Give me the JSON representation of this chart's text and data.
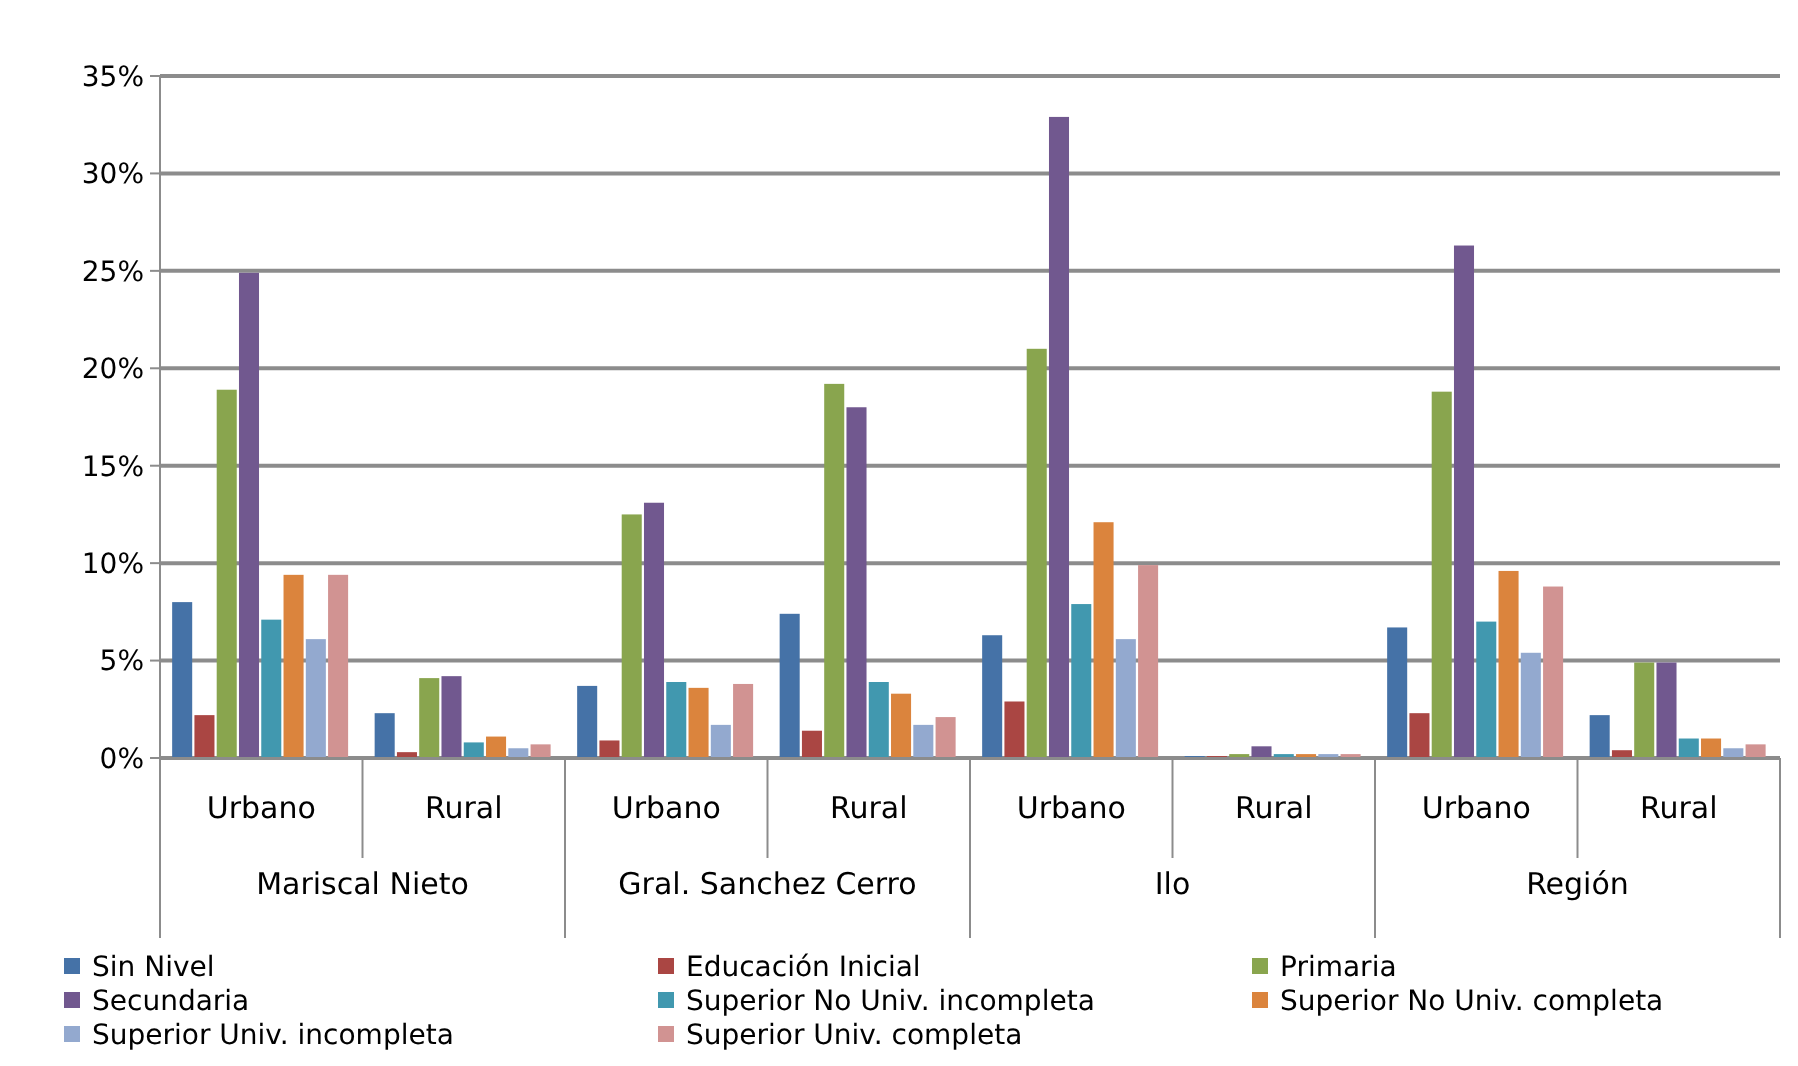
{
  "chart_data": {
    "type": "bar",
    "categories": [
      "Urbano",
      "Rural",
      "Urbano",
      "Rural",
      "Urbano",
      "Rural",
      "Urbano",
      "Rural"
    ],
    "annotations": [
      "Mariscal Nieto",
      "Gral. Sanchez Cerro",
      "Ilo",
      "Región"
    ],
    "series": [
      {
        "name": "Sin Nivel",
        "color": "#4572a7",
        "values": [
          8.0,
          2.3,
          3.7,
          7.4,
          6.3,
          0.1,
          6.7,
          2.2
        ]
      },
      {
        "name": "Educación Inicial",
        "color": "#aa4643",
        "values": [
          2.2,
          0.3,
          0.9,
          1.4,
          2.9,
          0.1,
          2.3,
          0.4
        ]
      },
      {
        "name": "Primaria",
        "color": "#89a54e",
        "values": [
          18.9,
          4.1,
          12.5,
          19.2,
          21.0,
          0.2,
          18.8,
          4.9
        ]
      },
      {
        "name": "Secundaria",
        "color": "#71588f",
        "values": [
          24.9,
          4.2,
          13.1,
          18.0,
          32.9,
          0.6,
          26.3,
          4.9
        ]
      },
      {
        "name": "Superior No Univ. incompleta",
        "color": "#4198af",
        "values": [
          7.1,
          0.8,
          3.9,
          3.9,
          7.9,
          0.2,
          7.0,
          1.0
        ]
      },
      {
        "name": "Superior No Univ. completa",
        "color": "#db843d",
        "values": [
          9.4,
          1.1,
          3.6,
          3.3,
          12.1,
          0.2,
          9.6,
          1.0
        ]
      },
      {
        "name": "Superior Univ. incompleta",
        "color": "#93a9cf",
        "values": [
          6.1,
          0.5,
          1.7,
          1.7,
          6.1,
          0.2,
          5.4,
          0.5
        ]
      },
      {
        "name": "Superior Univ. completa",
        "color": "#d19392",
        "values": [
          9.4,
          0.7,
          3.8,
          2.1,
          9.9,
          0.2,
          8.8,
          0.7
        ]
      }
    ],
    "ylim": [
      0,
      35
    ],
    "yticks": [
      {
        "value": 0,
        "label": "0%"
      },
      {
        "value": 5,
        "label": "5%"
      },
      {
        "value": 10,
        "label": "10%"
      },
      {
        "value": 15,
        "label": "15%"
      },
      {
        "value": 20,
        "label": "20%"
      },
      {
        "value": 25,
        "label": "25%"
      },
      {
        "value": 30,
        "label": "30%"
      },
      {
        "value": 35,
        "label": "35%"
      }
    ],
    "grid": "y",
    "legend": "bottom"
  }
}
